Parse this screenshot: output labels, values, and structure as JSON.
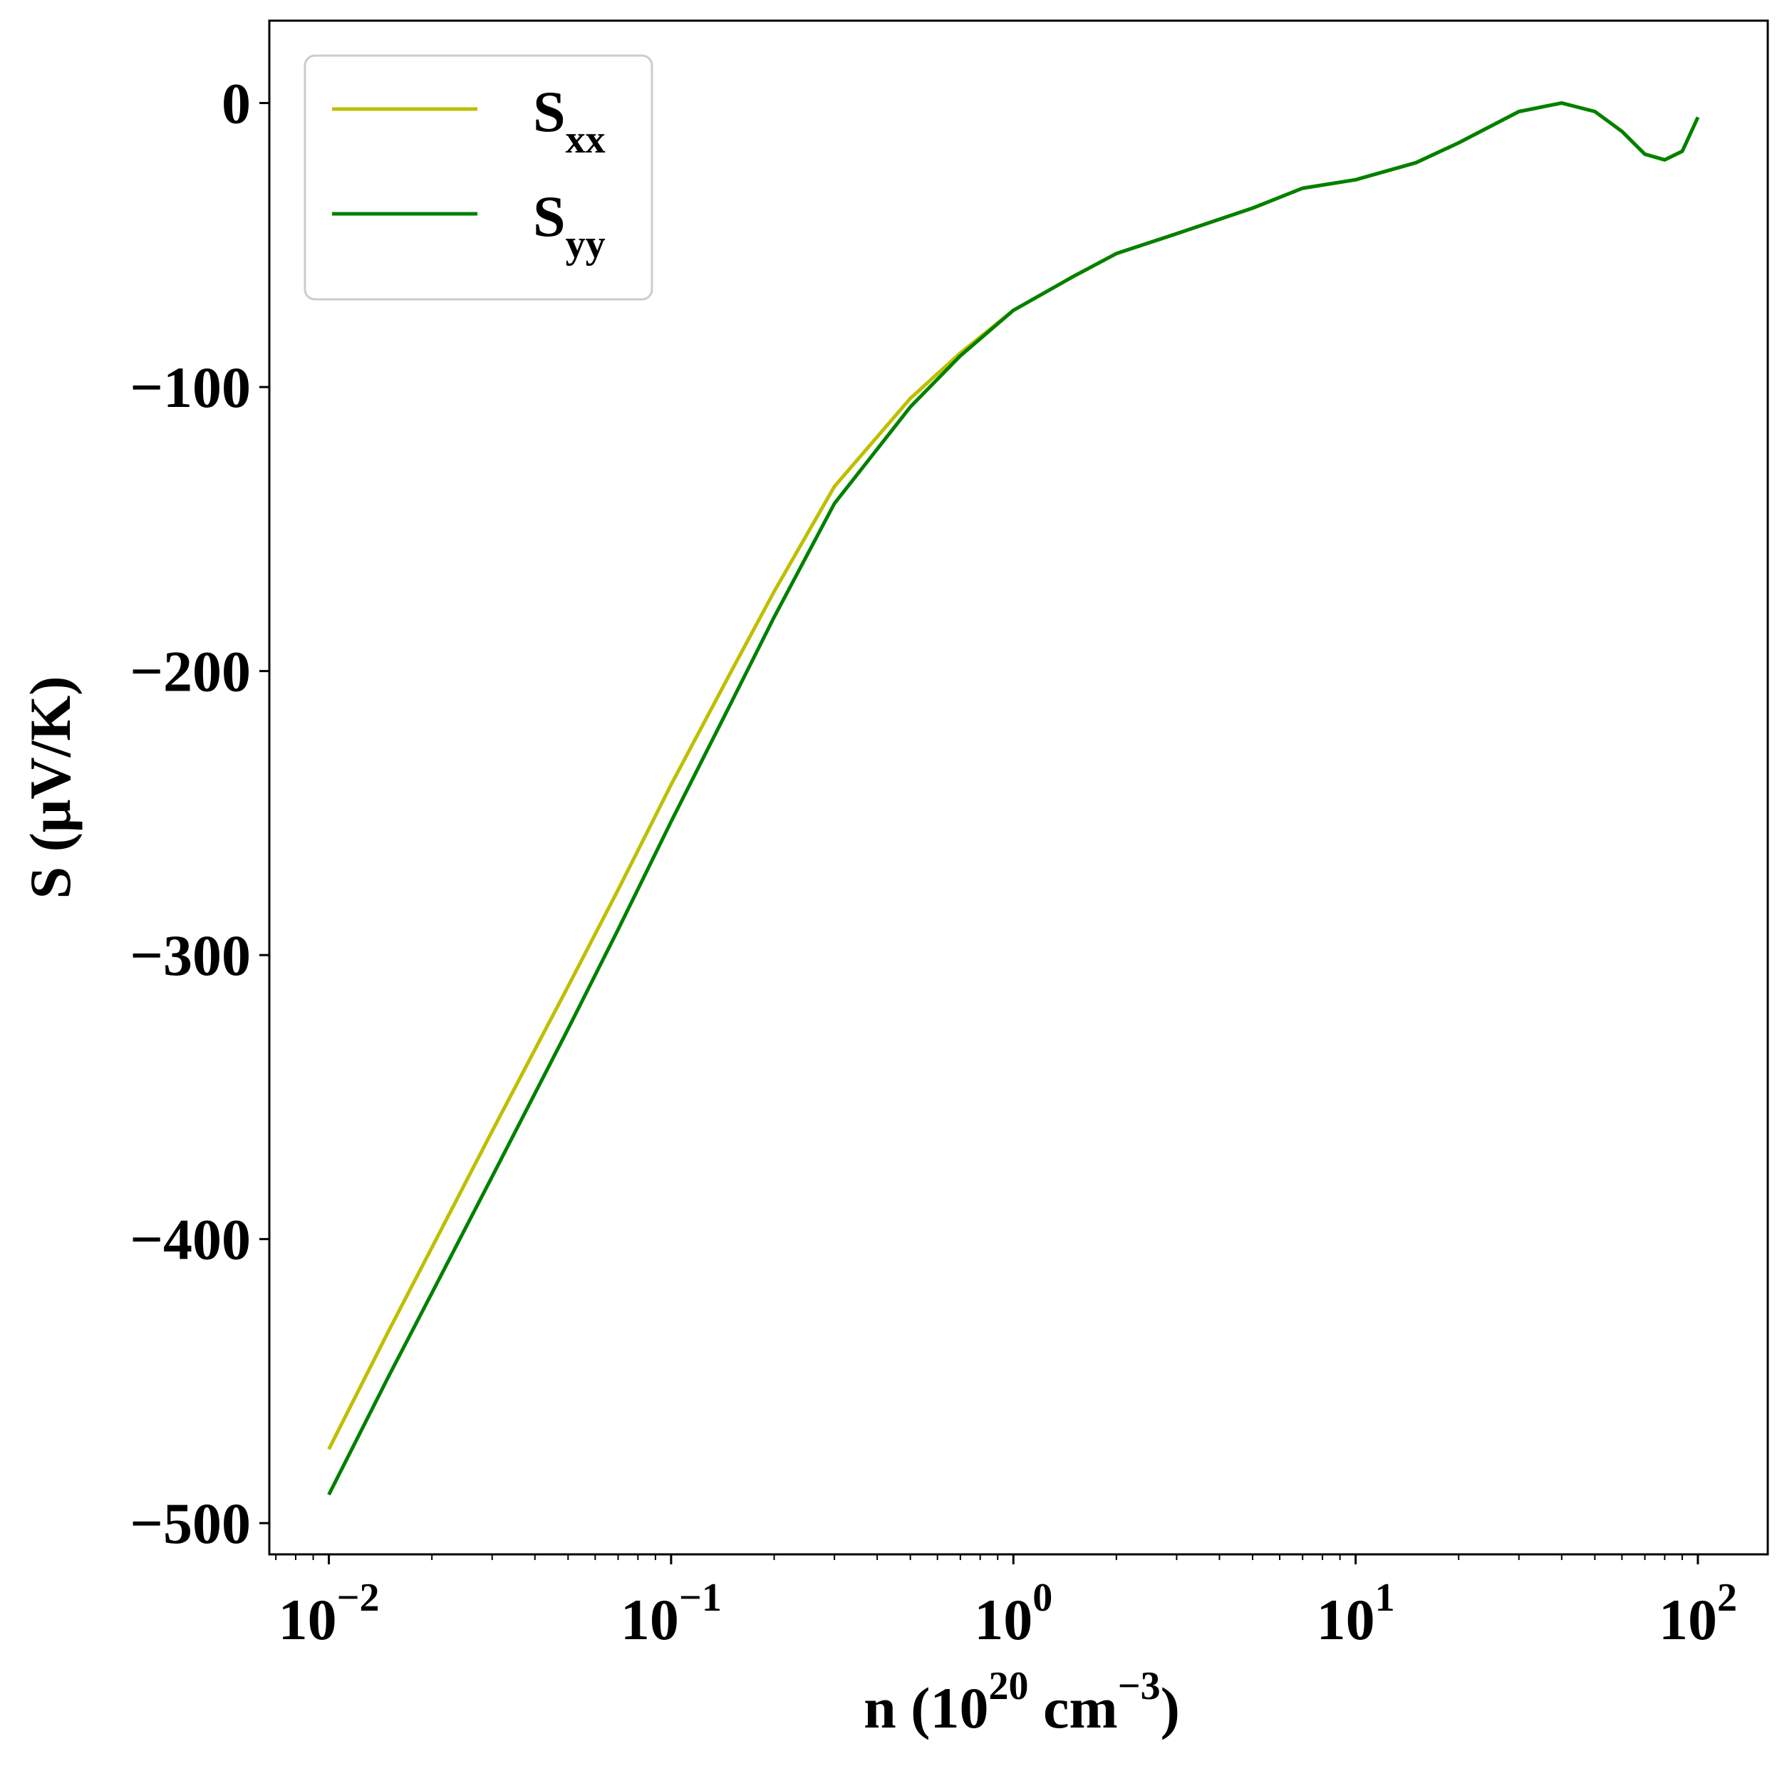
{
  "chart_data": {
    "type": "line",
    "title": "",
    "xlabel": {
      "base": "n (10",
      "exp1": "20",
      "mid": " cm",
      "exp2": "−3",
      "tail": ")"
    },
    "ylabel": "S (μV/K)",
    "xscale": "log",
    "xlim": [
      0.0067,
      160
    ],
    "ylim": [
      -511,
      29
    ],
    "x_ticks": [
      {
        "value": 0.01,
        "base": "10",
        "exp": "−2"
      },
      {
        "value": 0.1,
        "base": "10",
        "exp": "−1"
      },
      {
        "value": 1,
        "base": "10",
        "exp": "0"
      },
      {
        "value": 10,
        "base": "10",
        "exp": "1"
      },
      {
        "value": 100,
        "base": "10",
        "exp": "2"
      }
    ],
    "y_ticks": [
      {
        "value": 0,
        "label": "0"
      },
      {
        "value": -100,
        "label": "−100"
      },
      {
        "value": -200,
        "label": "−200"
      },
      {
        "value": -300,
        "label": "−300"
      },
      {
        "value": -400,
        "label": "−400"
      },
      {
        "value": -500,
        "label": "−500"
      }
    ],
    "grid": false,
    "legend_position": "top-left",
    "series": [
      {
        "name": "S",
        "name_sub": "xx",
        "color": "#bfbf00",
        "points": [
          [
            0.01,
            -474
          ],
          [
            0.015,
            -432
          ],
          [
            0.02,
            -403
          ],
          [
            0.03,
            -362
          ],
          [
            0.05,
            -311
          ],
          [
            0.07,
            -277
          ],
          [
            0.1,
            -240
          ],
          [
            0.15,
            -200
          ],
          [
            0.2,
            -172
          ],
          [
            0.3,
            -135
          ],
          [
            0.5,
            -104
          ],
          [
            0.7,
            -88
          ],
          [
            1.0,
            -73
          ],
          [
            1.5,
            -61
          ],
          [
            2.0,
            -53
          ],
          [
            3.0,
            -46
          ],
          [
            5.0,
            -37
          ],
          [
            7.0,
            -30
          ],
          [
            10.0,
            -27
          ],
          [
            15.0,
            -21
          ],
          [
            20.0,
            -14
          ],
          [
            30.0,
            -3
          ],
          [
            40.0,
            0
          ],
          [
            50.0,
            -3
          ],
          [
            60.0,
            -10
          ],
          [
            70.0,
            -18
          ],
          [
            80.0,
            -20
          ],
          [
            90.0,
            -17
          ],
          [
            100.0,
            -5
          ]
        ]
      },
      {
        "name": "S",
        "name_sub": "yy",
        "color": "#008000",
        "points": [
          [
            0.01,
            -490
          ],
          [
            0.015,
            -448
          ],
          [
            0.02,
            -419
          ],
          [
            0.03,
            -378
          ],
          [
            0.05,
            -326
          ],
          [
            0.07,
            -291
          ],
          [
            0.1,
            -253
          ],
          [
            0.15,
            -211
          ],
          [
            0.2,
            -181
          ],
          [
            0.3,
            -141
          ],
          [
            0.5,
            -107
          ],
          [
            0.7,
            -89
          ],
          [
            1.0,
            -73
          ],
          [
            1.5,
            -61
          ],
          [
            2.0,
            -53
          ],
          [
            3.0,
            -46
          ],
          [
            5.0,
            -37
          ],
          [
            7.0,
            -30
          ],
          [
            10.0,
            -27
          ],
          [
            15.0,
            -21
          ],
          [
            20.0,
            -14
          ],
          [
            30.0,
            -3
          ],
          [
            40.0,
            0
          ],
          [
            50.0,
            -3
          ],
          [
            60.0,
            -10
          ],
          [
            70.0,
            -18
          ],
          [
            80.0,
            -20
          ],
          [
            90.0,
            -17
          ],
          [
            100.0,
            -5
          ]
        ]
      }
    ]
  }
}
